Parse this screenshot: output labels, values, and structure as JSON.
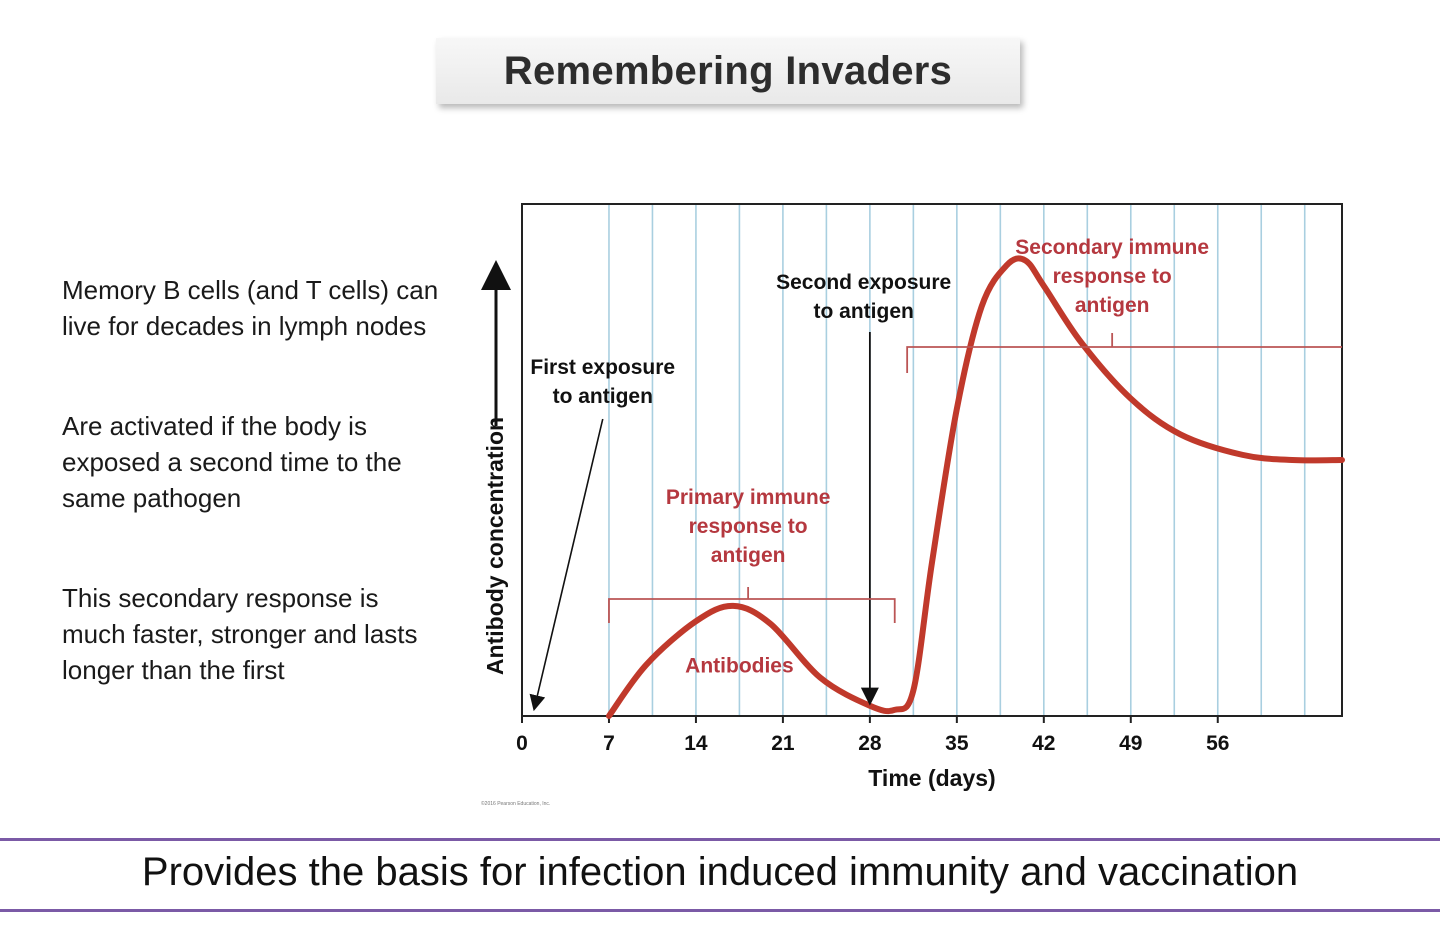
{
  "title": "Remembering Invaders",
  "bullets": [
    "Memory B cells (and T cells) can live for decades in lymph nodes",
    "Are activated if the body is exposed a second time to the same pathogen",
    "This secondary response is much faster, stronger and lasts longer than the first"
  ],
  "footer": "Provides the basis for infection induced immunity and vaccination",
  "copyright": "©2016 Pearson Education, Inc.",
  "colors": {
    "curve": "#c0392b",
    "label_red": "#b5383f",
    "grid": "#a9cfe0",
    "rule": "#7b5aa6"
  },
  "chart_data": {
    "type": "line",
    "xlabel": "Time (days)",
    "ylabel": "Antibody concentration",
    "xlim": [
      0,
      66
    ],
    "ylim": [
      0,
      100
    ],
    "x_ticks": [
      0,
      7,
      14,
      21,
      28,
      35,
      42,
      49,
      56
    ],
    "y_axis_arrow": true,
    "grid": "vertical",
    "series": [
      {
        "name": "Antibodies",
        "x": [
          7,
          10,
          14,
          17,
          20,
          24,
          28,
          30,
          31.5,
          33,
          35,
          37,
          39,
          40.5,
          42,
          45,
          49,
          53,
          58,
          62,
          66
        ],
        "y": [
          0,
          10,
          18.5,
          21.5,
          18,
          7.5,
          2,
          1.2,
          5,
          30,
          60,
          80,
          88,
          89,
          84,
          73,
          62,
          55,
          51,
          50,
          50
        ]
      }
    ],
    "annotations": {
      "first_exposure": {
        "text": [
          "First exposure",
          "to antigen"
        ],
        "x": 1
      },
      "second_exposure": {
        "text": [
          "Second exposure",
          "to antigen"
        ],
        "x": 28
      },
      "primary_response": {
        "text": [
          "Primary immune",
          "response to",
          "antigen"
        ],
        "x_range": [
          7,
          30
        ]
      },
      "secondary_response": {
        "text": [
          "Secondary immune",
          "response to",
          "antigen"
        ],
        "x_range": [
          31,
          66
        ]
      },
      "series_label": {
        "text": "Antibodies",
        "x": 17.5,
        "y": 8.5
      }
    }
  }
}
